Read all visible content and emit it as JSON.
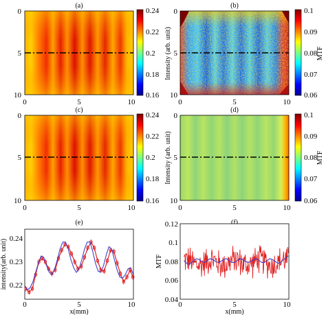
{
  "chart_data": [
    {
      "id": "a",
      "panel_label": "(a)",
      "type": "heatmap",
      "x_ticks": [
        "0",
        "5",
        "10"
      ],
      "y_ticks": [
        "0",
        "5",
        "10"
      ],
      "xlim": [
        0,
        10
      ],
      "ylim": [
        0,
        10
      ],
      "colorbar": {
        "label": "",
        "ticks": [
          "0.24",
          "0.22",
          "0.2",
          "0.18",
          "0.16"
        ],
        "range": [
          0.16,
          0.24
        ]
      },
      "dashed_line_y": 5
    },
    {
      "id": "b",
      "panel_label": "(b)",
      "type": "heatmap",
      "x_ticks": [
        "0",
        "5",
        "10"
      ],
      "y_ticks": [
        "0",
        "5",
        "10"
      ],
      "xlim": [
        0,
        10
      ],
      "ylim": [
        0,
        10
      ],
      "ylabel": "Intensity (arb. unit)",
      "colorbar": {
        "label": "MTF",
        "ticks": [
          "0.1",
          "0.09",
          "0.08",
          "0.07",
          "0.06"
        ],
        "range": [
          0.06,
          0.1
        ]
      },
      "dashed_line_y": 5
    },
    {
      "id": "c",
      "panel_label": "(c)",
      "type": "heatmap",
      "x_ticks": [
        "0",
        "5",
        "10"
      ],
      "y_ticks": [
        "0",
        "5",
        "10"
      ],
      "xlim": [
        0,
        10
      ],
      "ylim": [
        0,
        10
      ],
      "colorbar": {
        "label": "",
        "ticks": [
          "0.24",
          "0.22",
          "0.2",
          "0.18",
          "0.16"
        ],
        "range": [
          0.16,
          0.24
        ]
      },
      "dashed_line_y": 5
    },
    {
      "id": "d",
      "panel_label": "(d)",
      "type": "heatmap",
      "x_ticks": [
        "0",
        "5",
        "10"
      ],
      "y_ticks": [
        "0",
        "5",
        "10"
      ],
      "xlim": [
        0,
        10
      ],
      "ylim": [
        0,
        10
      ],
      "ylabel": "Intensity (arb. unit)",
      "colorbar": {
        "label": "MTF",
        "ticks": [
          "0.1",
          "0.09",
          "0.08",
          "0.07",
          "0.06"
        ],
        "range": [
          0.06,
          0.1
        ]
      },
      "dashed_line_y": 5
    },
    {
      "id": "e",
      "panel_label": "(e)",
      "type": "line",
      "xlabel": "x(mm)",
      "ylabel": "intensity(arb. unit)",
      "xlim": [
        0,
        10
      ],
      "ylim": [
        0.215,
        0.245
      ],
      "x_ticks": [
        "0",
        "5",
        "10"
      ],
      "y_ticks": [
        "0.24",
        "0.23",
        "0.22"
      ],
      "series": [
        {
          "color": "#e02020",
          "style": "markers-errorbars",
          "x": [
            0.1,
            0.4,
            0.7,
            1.0,
            1.3,
            1.6,
            1.9,
            2.2,
            2.5,
            2.8,
            3.1,
            3.4,
            3.7,
            4.0,
            4.3,
            4.6,
            4.9,
            5.2,
            5.5,
            5.8,
            6.1,
            6.4,
            6.7,
            7.0,
            7.3,
            7.6,
            7.9,
            8.2,
            8.5,
            8.8,
            9.1,
            9.4,
            9.7,
            9.95
          ],
          "y": [
            0.2195,
            0.218,
            0.2195,
            0.2255,
            0.231,
            0.2325,
            0.231,
            0.228,
            0.226,
            0.2275,
            0.2325,
            0.236,
            0.2385,
            0.2375,
            0.2345,
            0.231,
            0.228,
            0.229,
            0.233,
            0.237,
            0.2395,
            0.237,
            0.2315,
            0.2275,
            0.227,
            0.2315,
            0.236,
            0.2355,
            0.2305,
            0.226,
            0.2225,
            0.2245,
            0.2275,
            0.2245
          ]
        },
        {
          "color": "#4040c8",
          "style": "line",
          "x": [
            0.0,
            0.25,
            0.5,
            0.75,
            1.0,
            1.25,
            1.5,
            1.75,
            2.0,
            2.25,
            2.5,
            2.75,
            3.0,
            3.25,
            3.5,
            3.75,
            4.0,
            4.25,
            4.5,
            4.75,
            5.0,
            5.25,
            5.5,
            5.75,
            6.0,
            6.25,
            6.5,
            6.75,
            7.0,
            7.25,
            7.5,
            7.75,
            8.0,
            8.25,
            8.5,
            8.75,
            9.0,
            9.25,
            9.5,
            9.75,
            10.0
          ],
          "y": [
            0.2205,
            0.219,
            0.22,
            0.2225,
            0.2265,
            0.2305,
            0.2335,
            0.233,
            0.2295,
            0.2265,
            0.2255,
            0.228,
            0.232,
            0.2365,
            0.2395,
            0.2395,
            0.2365,
            0.232,
            0.2285,
            0.2265,
            0.228,
            0.232,
            0.2365,
            0.2395,
            0.2395,
            0.2355,
            0.2305,
            0.227,
            0.2265,
            0.2295,
            0.234,
            0.2375,
            0.2365,
            0.232,
            0.2275,
            0.2245,
            0.224,
            0.2255,
            0.228,
            0.2285,
            0.2255
          ]
        }
      ]
    },
    {
      "id": "f",
      "panel_label": "(f)",
      "type": "line",
      "xlabel": "x(mm)",
      "ylabel": "MTF",
      "xlim": [
        0,
        10
      ],
      "ylim": [
        0.04,
        0.12
      ],
      "x_ticks": [
        "0",
        "5",
        "10"
      ],
      "y_ticks": [
        "0.12",
        "0.1",
        "0.08",
        "0.06",
        "0.04"
      ],
      "series": [
        {
          "color": "#e02020",
          "style": "noisy-line",
          "center": 0.079,
          "amplitude": 0.018,
          "x_start": 0.35,
          "x_end": 9.95
        },
        {
          "color": "#4040c8",
          "style": "line",
          "x": [
            0.35,
            0.5,
            0.75,
            1.0,
            1.25,
            1.5,
            1.75,
            2.0,
            2.25,
            2.5,
            2.75,
            3.0,
            3.25,
            3.5,
            3.75,
            4.0,
            4.25,
            4.5,
            4.75,
            5.0,
            5.25,
            5.5,
            5.75,
            6.0,
            6.25,
            6.5,
            6.75,
            7.0,
            7.25,
            7.5,
            7.75,
            8.0,
            8.25,
            8.5,
            8.75,
            9.0,
            9.25,
            9.5,
            9.75,
            9.95
          ],
          "y": [
            0.081,
            0.079,
            0.077,
            0.078,
            0.081,
            0.083,
            0.082,
            0.08,
            0.079,
            0.081,
            0.083,
            0.082,
            0.08,
            0.079,
            0.08,
            0.082,
            0.083,
            0.081,
            0.079,
            0.079,
            0.081,
            0.083,
            0.082,
            0.08,
            0.079,
            0.08,
            0.082,
            0.083,
            0.081,
            0.079,
            0.079,
            0.081,
            0.083,
            0.082,
            0.08,
            0.078,
            0.079,
            0.082,
            0.084,
            0.086
          ]
        }
      ]
    }
  ],
  "colors": {
    "jet_dark_red": "#7f0000",
    "jet_red": "#ff0000",
    "jet_orange": "#ff8000",
    "jet_yellow": "#ffff00",
    "jet_cyan": "#00ffff",
    "jet_blue": "#0000ff",
    "jet_dark_blue": "#00008f",
    "dash_line": "#000000"
  }
}
